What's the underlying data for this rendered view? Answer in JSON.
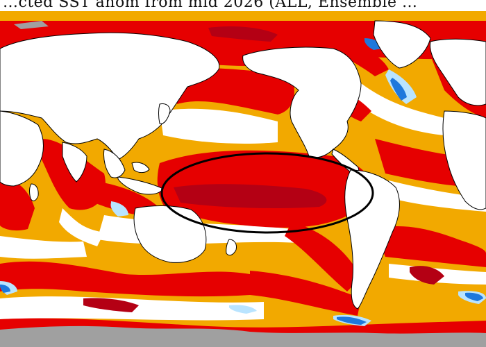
{
  "title": "…cted SST anom from mid 2026 (ALL, Ensemble …",
  "colors": {
    "ocean_background": "#f2a900",
    "strong_warm": "#e60000",
    "moderate_warm": "#ff2a00",
    "mild_warm": "#f8c860",
    "very_strong_warm": "#b40014",
    "neutral": "#ffffff",
    "mild_cool": "#b9e4ff",
    "cool": "#1e78dc",
    "land": "#ffffff",
    "land_border": "#000000",
    "sea_ice": "#a0a0a0",
    "highlight_ellipse": "#000000"
  },
  "legend": [],
  "annotation": {
    "shape": "ellipse",
    "highlights": "Central-Eastern Equatorial Pacific"
  }
}
